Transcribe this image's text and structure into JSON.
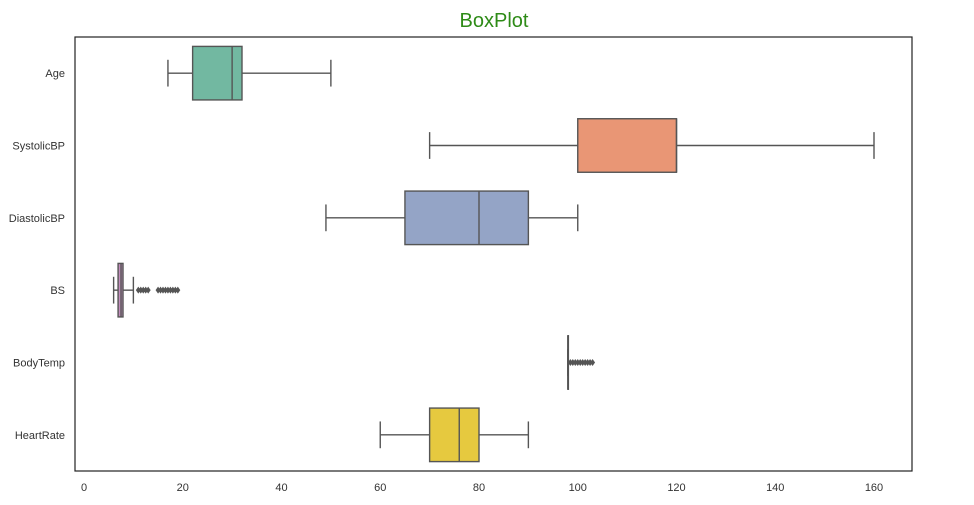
{
  "chart_data": {
    "type": "boxplot",
    "title": "BoxPlot",
    "orientation": "horizontal",
    "xlabel": "",
    "ylabel": "",
    "xlim": [
      -1.5,
      168
    ],
    "xticks": [
      0,
      20,
      40,
      60,
      80,
      100,
      120,
      140,
      160
    ],
    "grid": false,
    "categories": [
      "Age",
      "SystolicBP",
      "DiastolicBP",
      "BS",
      "BodyTemp",
      "HeartRate"
    ],
    "series": [
      {
        "name": "Age",
        "whisker_low": 17,
        "q1": 22,
        "median": 30,
        "q3": 32,
        "whisker_high": 50,
        "outliers": [],
        "color": "#72b8a1"
      },
      {
        "name": "SystolicBP",
        "whisker_low": 70,
        "q1": 100,
        "median": 120,
        "q3": 120,
        "whisker_high": 160,
        "outliers": [],
        "color": "#e99675"
      },
      {
        "name": "DiastolicBP",
        "whisker_low": 49,
        "q1": 65,
        "median": 80,
        "q3": 90,
        "whisker_high": 100,
        "outliers": [],
        "color": "#94a4c6"
      },
      {
        "name": "BS",
        "whisker_low": 6,
        "q1": 6.9,
        "median": 7.5,
        "q3": 7.9,
        "whisker_high": 10,
        "outliers": [
          11,
          11.5,
          12,
          12.5,
          13,
          15,
          15.5,
          16,
          16.5,
          17,
          17.5,
          18,
          18.5,
          19
        ],
        "color": "#c28dbc"
      },
      {
        "name": "BodyTemp",
        "whisker_low": 98,
        "q1": 98,
        "median": 98,
        "q3": 98,
        "whisker_high": 98,
        "outliers": [
          98.5,
          99,
          99.5,
          100,
          100.5,
          101,
          101.5,
          102,
          102.5,
          103
        ],
        "color": "#a6c866"
      },
      {
        "name": "HeartRate",
        "whisker_low": 60,
        "q1": 70,
        "median": 76,
        "q3": 80,
        "whisker_high": 90,
        "outliers": [],
        "color": "#e6c93f"
      }
    ]
  }
}
